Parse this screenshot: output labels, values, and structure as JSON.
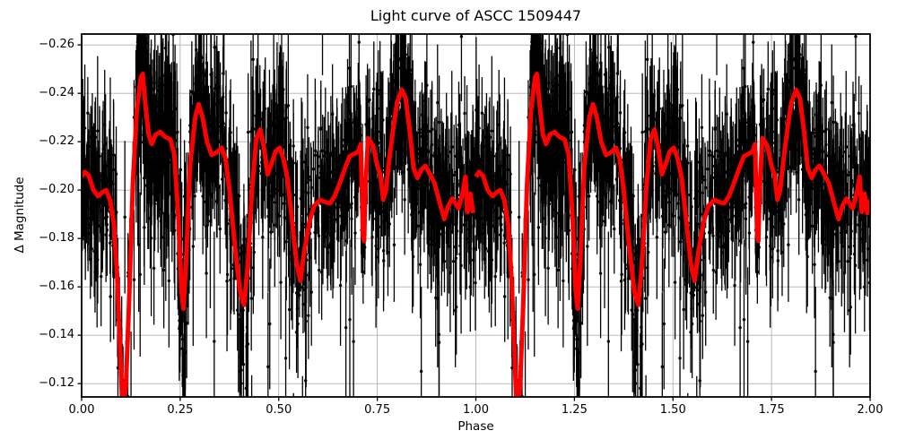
{
  "chart_data": {
    "type": "scatter",
    "title": "Light curve of ASCC 1509447",
    "xlabel": "Phase",
    "ylabel": "Δ Magnitude",
    "xlim": [
      0.0,
      2.0
    ],
    "ylim_display": [
      -0.2645,
      -0.1145
    ],
    "y_axis_inverted": true,
    "grid": true,
    "grid_color": "#b0b0b0",
    "background_color": "#ffffff",
    "axis_color": "#000000",
    "x_ticks": [
      0.0,
      0.25,
      0.5,
      0.75,
      1.0,
      1.25,
      1.5,
      1.75,
      2.0
    ],
    "x_tick_labels": [
      "0.00",
      "0.25",
      "0.50",
      "0.75",
      "1.00",
      "1.25",
      "1.50",
      "1.75",
      "2.00"
    ],
    "y_ticks": [
      -0.26,
      -0.24,
      -0.22,
      -0.2,
      -0.18,
      -0.16,
      -0.14,
      -0.12
    ],
    "y_tick_labels": [
      "−0.26",
      "−0.24",
      "−0.22",
      "−0.20",
      "−0.18",
      "−0.16",
      "−0.14",
      "−0.12"
    ],
    "series": [
      {
        "name": "observations",
        "type": "errorbar-scatter",
        "color": "#000000",
        "marker_radius": 1.7,
        "errorbar_linewidth": 1.3,
        "periods_plotted": 2,
        "scatter_model": {
          "seed": 1509447,
          "sigma": 0.013,
          "outlier_fraction_faint": 0.045,
          "outlier_fraction_bright": 0.015,
          "errbar_base": 0.0065,
          "clusters": [
            [
              0.036,
              0.038,
              130,
              1.0
            ],
            [
              0.087,
              0.013,
              25,
              1.1
            ],
            [
              0.118,
              0.018,
              15,
              2.2
            ],
            [
              0.157,
              0.02,
              170,
              1.0
            ],
            [
              0.208,
              0.031,
              170,
              1.0
            ],
            [
              0.262,
              0.022,
              70,
              1.5
            ],
            [
              0.317,
              0.032,
              170,
              1.0
            ],
            [
              0.395,
              0.044,
              130,
              1.4
            ],
            [
              0.485,
              0.044,
              160,
              1.0
            ],
            [
              0.57,
              0.04,
              90,
              1.5
            ],
            [
              0.665,
              0.054,
              190,
              1.0
            ],
            [
              0.745,
              0.025,
              70,
              1.3
            ],
            [
              0.812,
              0.042,
              190,
              1.0
            ],
            [
              0.905,
              0.049,
              170,
              1.2
            ],
            [
              0.976,
              0.021,
              55,
              1.0
            ],
            [
              0.5,
              0.5,
              30,
              2.5
            ]
          ]
        }
      },
      {
        "name": "smoothed-light-curve",
        "type": "line",
        "color": "#ff0000",
        "linewidth": 5,
        "periods_plotted": 2,
        "period_boundary_gap": [
          0.9931,
          1.0
        ],
        "phase": [
          0.0,
          0.008,
          0.018,
          0.03,
          0.042,
          0.052,
          0.062,
          0.072,
          0.082,
          0.09,
          0.098,
          0.104,
          0.112,
          0.12,
          0.13,
          0.14,
          0.15,
          0.155,
          0.162,
          0.17,
          0.178,
          0.188,
          0.2,
          0.212,
          0.225,
          0.235,
          0.245,
          0.253,
          0.258,
          0.265,
          0.275,
          0.288,
          0.297,
          0.307,
          0.318,
          0.33,
          0.342,
          0.355,
          0.365,
          0.375,
          0.39,
          0.402,
          0.412,
          0.422,
          0.432,
          0.443,
          0.453,
          0.462,
          0.472,
          0.482,
          0.492,
          0.502,
          0.512,
          0.522,
          0.532,
          0.545,
          0.555,
          0.565,
          0.578,
          0.59,
          0.605,
          0.618,
          0.63,
          0.642,
          0.655,
          0.668,
          0.68,
          0.692,
          0.702,
          0.708,
          0.7135,
          0.7165,
          0.72,
          0.7265,
          0.733,
          0.74,
          0.75,
          0.758,
          0.765,
          0.772,
          0.78,
          0.79,
          0.8,
          0.812,
          0.822,
          0.832,
          0.842,
          0.852,
          0.862,
          0.872,
          0.882,
          0.895,
          0.908,
          0.92,
          0.93,
          0.94,
          0.948,
          0.956,
          0.966,
          0.9735,
          0.979,
          0.986,
          0.993,
          1.0
        ],
        "delta_mag": [
          -0.2055,
          -0.2075,
          -0.206,
          -0.2,
          -0.1975,
          -0.199,
          -0.2,
          -0.196,
          -0.186,
          -0.165,
          -0.133,
          -0.108,
          -0.118,
          -0.152,
          -0.203,
          -0.233,
          -0.2465,
          -0.248,
          -0.235,
          -0.223,
          -0.219,
          -0.223,
          -0.224,
          -0.222,
          -0.221,
          -0.215,
          -0.19,
          -0.159,
          -0.151,
          -0.17,
          -0.21,
          -0.23,
          -0.2355,
          -0.23,
          -0.22,
          -0.2145,
          -0.2155,
          -0.2175,
          -0.213,
          -0.2,
          -0.175,
          -0.158,
          -0.1525,
          -0.17,
          -0.2,
          -0.221,
          -0.225,
          -0.218,
          -0.2065,
          -0.211,
          -0.216,
          -0.2175,
          -0.213,
          -0.205,
          -0.19,
          -0.17,
          -0.1625,
          -0.175,
          -0.187,
          -0.1935,
          -0.196,
          -0.195,
          -0.1945,
          -0.1975,
          -0.203,
          -0.209,
          -0.214,
          -0.215,
          -0.216,
          -0.219,
          -0.1815,
          -0.179,
          -0.2,
          -0.2215,
          -0.22,
          -0.218,
          -0.21,
          -0.206,
          -0.196,
          -0.2,
          -0.212,
          -0.225,
          -0.236,
          -0.2415,
          -0.238,
          -0.225,
          -0.209,
          -0.205,
          -0.2085,
          -0.21,
          -0.207,
          -0.203,
          -0.195,
          -0.188,
          -0.1935,
          -0.1965,
          -0.1945,
          -0.1925,
          -0.1985,
          -0.2055,
          -0.191,
          -0.1985,
          -0.1905,
          -0.196
        ]
      }
    ]
  }
}
